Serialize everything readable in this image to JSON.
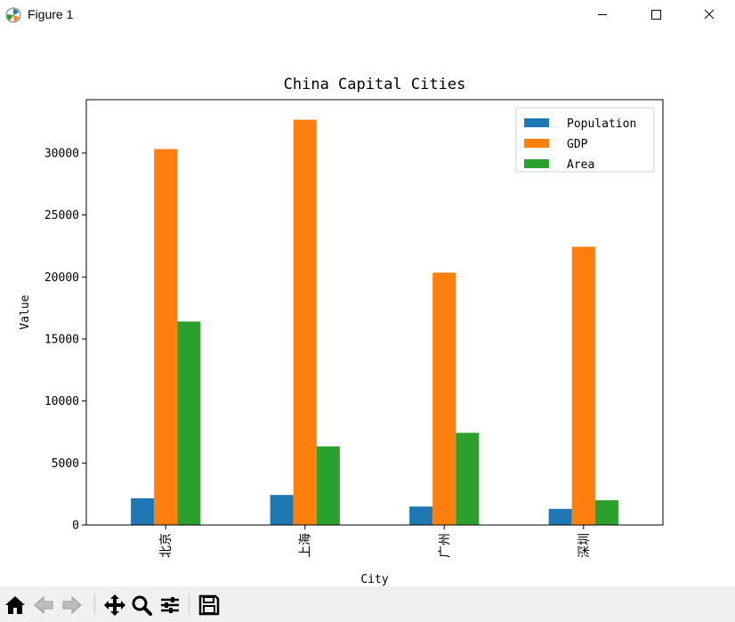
{
  "window": {
    "title": "Figure 1",
    "icon": "matplotlib-icon",
    "controls": [
      "minimize-icon",
      "maximize-icon",
      "close-icon"
    ]
  },
  "toolbar": {
    "buttons": [
      "home-icon",
      "back-arrow-icon",
      "forward-arrow-icon",
      "pan-icon",
      "zoom-icon",
      "configure-subplots-icon",
      "save-icon"
    ]
  },
  "chart_data": {
    "type": "bar",
    "title": "China Capital Cities",
    "xlabel": "City",
    "ylabel": "Value",
    "categories": [
      "北京",
      "上海",
      "广州",
      "深圳"
    ],
    "series": [
      {
        "name": "Population",
        "color": "#1f77b4",
        "values": [
          2154,
          2424,
          1490,
          1303
        ]
      },
      {
        "name": "GDP",
        "color": "#ff7f0e",
        "values": [
          30320,
          32680,
          20350,
          22440
        ]
      },
      {
        "name": "Area",
        "color": "#2ca02c",
        "values": [
          16410,
          6340,
          7434,
          1997
        ]
      }
    ],
    "ylim": [
      0,
      34300
    ],
    "yticks": [
      0,
      5000,
      10000,
      15000,
      20000,
      25000,
      30000
    ],
    "grid": false,
    "legend": "top-right"
  }
}
